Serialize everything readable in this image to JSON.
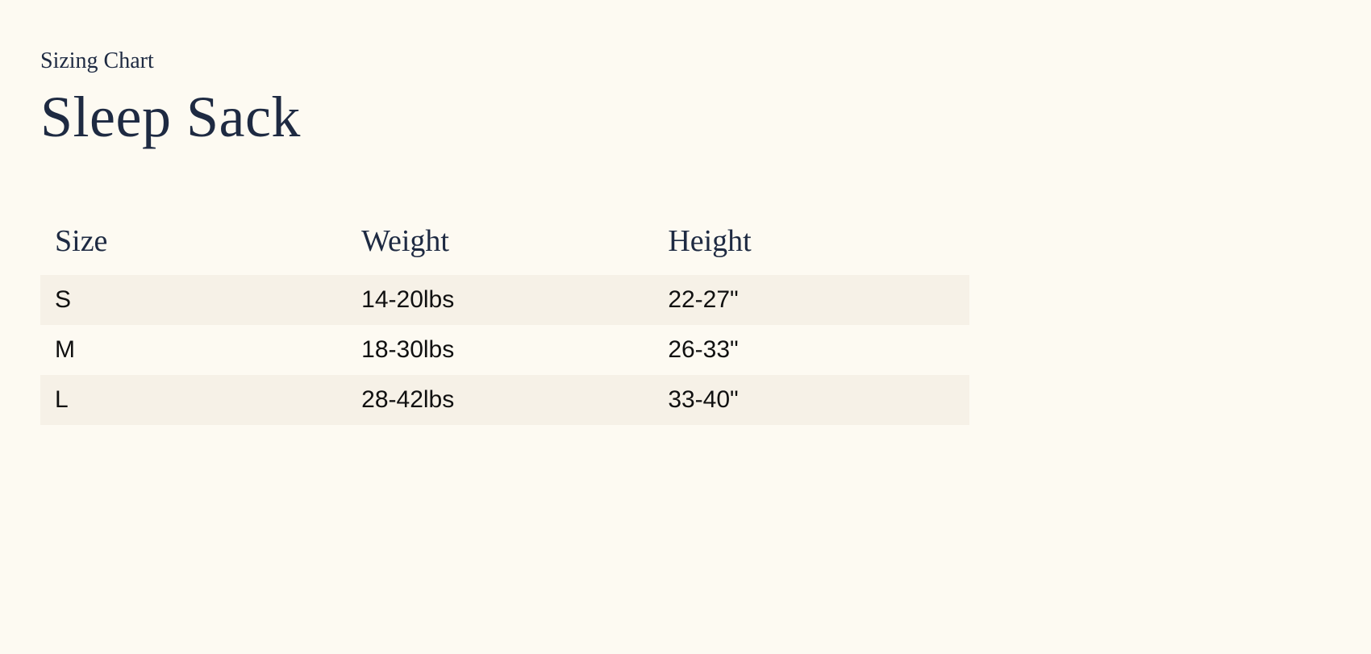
{
  "colors": {
    "page_bg": "#fdfaf2",
    "heading_text": "#1e2a42",
    "body_text": "#101010",
    "row_stripe_bg": "#f6f1e7"
  },
  "typography": {
    "heading_font": "Georgia serif",
    "body_font": "system sans-serif",
    "eyebrow_fontsize": 28,
    "title_fontsize": 72,
    "th_fontsize": 38,
    "td_fontsize": 30
  },
  "header": {
    "eyebrow": "Sizing Chart",
    "title": "Sleep Sack"
  },
  "table": {
    "type": "table",
    "width_percent": 72,
    "column_widths_percent": [
      33,
      33,
      34
    ],
    "stripe_odd_rows": true,
    "columns": [
      "Size",
      "Weight",
      "Height"
    ],
    "rows": [
      [
        "S",
        "14-20lbs",
        "22-27\""
      ],
      [
        "M",
        "18-30lbs",
        "26-33\""
      ],
      [
        "L",
        "28-42lbs",
        "33-40\""
      ]
    ]
  }
}
